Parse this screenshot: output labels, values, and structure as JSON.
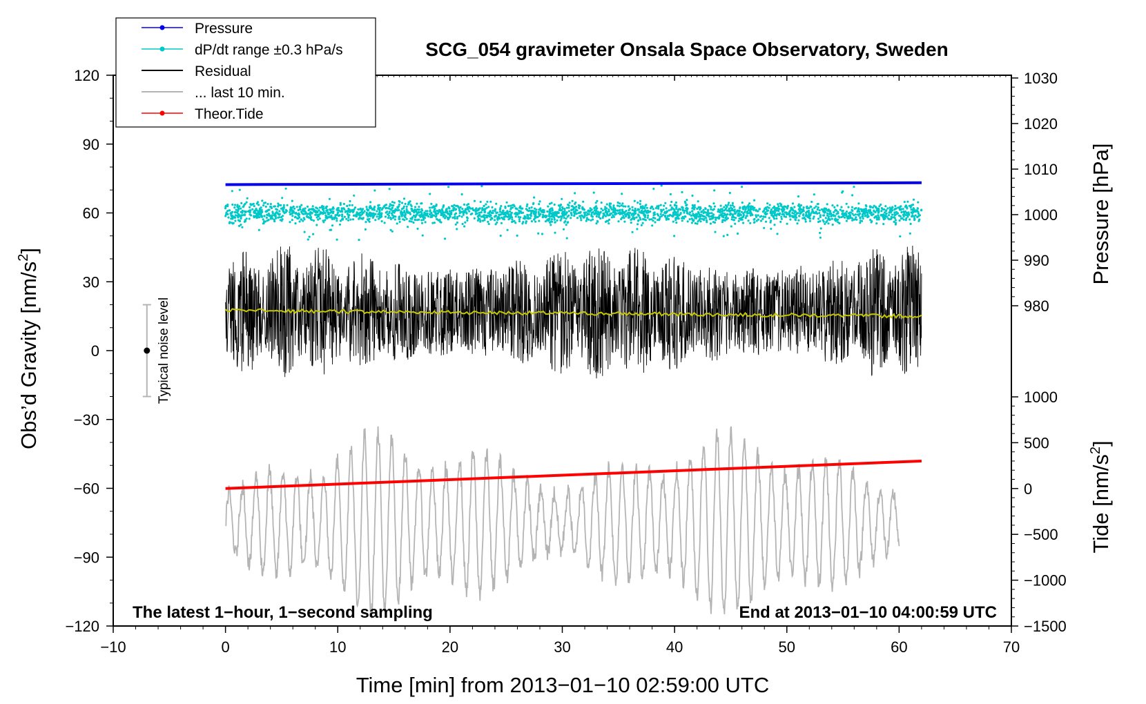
{
  "chart_data": {
    "type": "line",
    "title": "SCG_054 gravimeter Onsala Space Observatory, Sweden",
    "xlabel": "Time [min] from 2013−01−10 02:59:00 UTC",
    "ylabel_left": "Obs’d Gravity [nm/s",
    "ylabel_left_sup": "2",
    "ylabel_left_end": "]",
    "ylabel_right_pressure": "Pressure [hPa]",
    "ylabel_right_tide": "Tide [nm/s",
    "ylabel_right_tide_sup": "2",
    "ylabel_right_tide_end": "]",
    "xlim": [
      -10,
      70
    ],
    "ylim": [
      -120,
      120
    ],
    "pressure_axis_range": [
      980,
      1030
    ],
    "tide_axis_range": [
      -1500,
      1000
    ],
    "x_ticks": [
      "−10",
      "0",
      "10",
      "20",
      "30",
      "40",
      "50",
      "60",
      "70"
    ],
    "x_tick_values": [
      -10,
      0,
      10,
      20,
      30,
      40,
      50,
      60,
      70
    ],
    "y_ticks": [
      "120",
      "90",
      "60",
      "30",
      "0",
      "−30",
      "−60",
      "−90",
      "−120"
    ],
    "y_tick_values": [
      120,
      90,
      60,
      30,
      0,
      -30,
      -60,
      -90,
      -120
    ],
    "pressure_ticks": [
      "1030",
      "1020",
      "1010",
      "1000",
      "990",
      "980"
    ],
    "pressure_tick_values": [
      1030,
      1020,
      1010,
      1000,
      990,
      980
    ],
    "tide_ticks": [
      "1000",
      "500",
      "0",
      "−500",
      "−1000",
      "−1500"
    ],
    "tide_tick_values": [
      1000,
      500,
      0,
      -500,
      -1000,
      -1500
    ],
    "legend": [
      {
        "label": "Pressure",
        "color": "#0000ee"
      },
      {
        "label": "dP/dt range ±0.3 hPa/s",
        "color": "#00c8c8"
      },
      {
        "label": "Residual",
        "color": "#000000"
      },
      {
        "label": "... last 10 min.",
        "color": "#b4b4b4"
      },
      {
        "label": "Theor.Tide",
        "color": "#ff0000"
      }
    ],
    "series": [
      {
        "name": "Pressure",
        "color": "#0000ee",
        "axis": "pressure",
        "x": [
          0,
          62
        ],
        "values": [
          1006.6,
          1007.0
        ]
      },
      {
        "name": "dP/dt range ±0.3 hPa/s",
        "color": "#00c8c8",
        "axis": "gravity",
        "x_range": [
          0,
          62
        ],
        "center": 60,
        "spread": 3
      },
      {
        "name": "Residual",
        "color": "#000000",
        "axis": "gravity",
        "x_range": [
          0,
          62
        ],
        "center": 17,
        "amplitude_max": 30
      },
      {
        "name": "Residual (smoothed)",
        "color": "#c8c800",
        "axis": "gravity",
        "x": [
          0,
          62
        ],
        "values": [
          17.5,
          15.0
        ]
      },
      {
        "name": "... last 10 min.",
        "color": "#b4b4b4",
        "axis": "gravity",
        "x_range": [
          0,
          60
        ],
        "center": -75,
        "amplitude_max": 40
      },
      {
        "name": "Theor.Tide",
        "color": "#ff0000",
        "axis": "tide",
        "x": [
          0,
          62
        ],
        "values": [
          0,
          300
        ]
      }
    ],
    "noise_bar": {
      "label": "Typical noise level",
      "x": -7,
      "center": 0,
      "low": -20,
      "high": 20
    },
    "annotation_left": "The latest 1−hour, 1−second sampling",
    "annotation_right": "End at 2013−01−10 04:00:59 UTC"
  }
}
